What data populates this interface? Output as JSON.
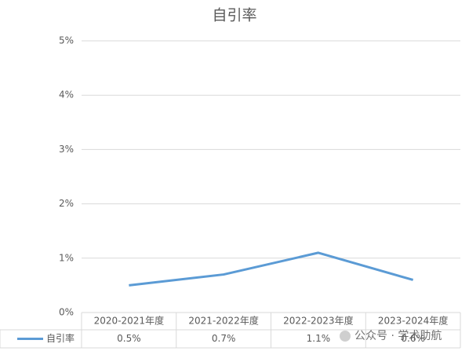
{
  "chart_data": {
    "type": "line",
    "title": "自引率",
    "categories": [
      "2020-2021年度",
      "2021-2022年度",
      "2022-2023年度",
      "2023-2024年度"
    ],
    "series": [
      {
        "name": "自引率",
        "color": "#5b9bd5",
        "values": [
          0.5,
          0.7,
          1.1,
          0.6
        ],
        "value_labels": [
          "0.5%",
          "0.7%",
          "1.1%",
          "0.6%"
        ]
      }
    ],
    "ylim": [
      0,
      5
    ],
    "yticks": [
      {
        "value": 0,
        "label": "0%"
      },
      {
        "value": 1,
        "label": "1%"
      },
      {
        "value": 2,
        "label": "2%"
      },
      {
        "value": 3,
        "label": "3%"
      },
      {
        "value": 4,
        "label": "4%"
      },
      {
        "value": 5,
        "label": "5%"
      }
    ],
    "grid": true,
    "watermark": "公众号 · 学术助航"
  }
}
